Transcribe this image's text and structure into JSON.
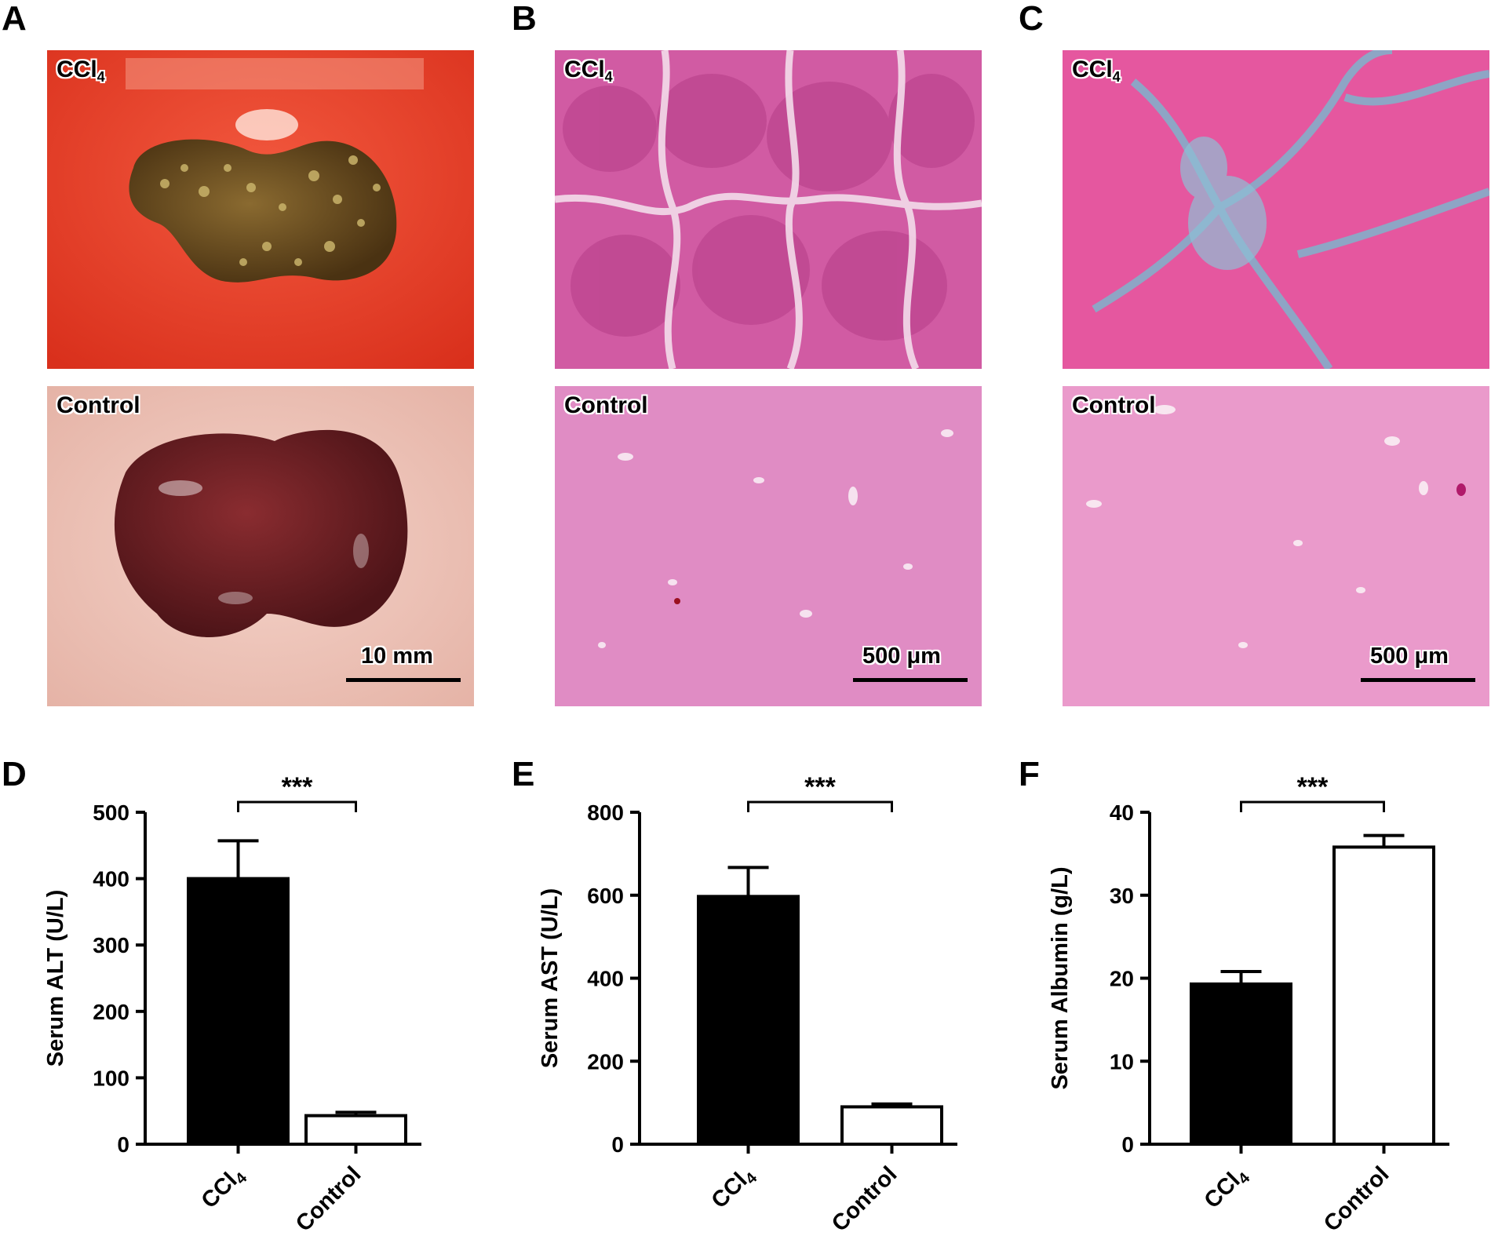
{
  "panels": {
    "A": {
      "letter": "A",
      "top_label": "CCl",
      "top_sub": "4",
      "bottom_label": "Control",
      "scale": "10 mm"
    },
    "B": {
      "letter": "B",
      "top_label": "CCl",
      "top_sub": "4",
      "bottom_label": "Control",
      "scale": "500 μm"
    },
    "C": {
      "letter": "C",
      "top_label": "CCl",
      "top_sub": "4",
      "bottom_label": "Control",
      "scale": "500 μm"
    },
    "D": {
      "letter": "D"
    },
    "E": {
      "letter": "E"
    },
    "F": {
      "letter": "F"
    }
  },
  "colors": {
    "ccl4_bar": "#000000",
    "control_bar": "#ffffff",
    "axis": "#000000"
  },
  "chart_data": [
    {
      "type": "bar",
      "panel": "D",
      "categories": [
        "CCl4",
        "Control"
      ],
      "category_labels": [
        {
          "main": "CCl",
          "sub": "4"
        },
        {
          "main": "Control",
          "sub": ""
        }
      ],
      "values": [
        400,
        43
      ],
      "errors": [
        57,
        5
      ],
      "fills": [
        "#000000",
        "#ffffff"
      ],
      "ylabel": "Serum ALT (U/L)",
      "ylim": [
        0,
        500
      ],
      "yticks": [
        0,
        100,
        200,
        300,
        400,
        500
      ],
      "significance": "***"
    },
    {
      "type": "bar",
      "panel": "E",
      "categories": [
        "CCl4",
        "Control"
      ],
      "category_labels": [
        {
          "main": "CCl",
          "sub": "4"
        },
        {
          "main": "Control",
          "sub": ""
        }
      ],
      "values": [
        597,
        90
      ],
      "errors": [
        70,
        7
      ],
      "fills": [
        "#000000",
        "#ffffff"
      ],
      "ylabel": "Serum AST (U/L)",
      "ylim": [
        0,
        800
      ],
      "yticks": [
        0,
        200,
        400,
        600,
        800
      ],
      "significance": "***"
    },
    {
      "type": "bar",
      "panel": "F",
      "categories": [
        "CCl4",
        "Control"
      ],
      "category_labels": [
        {
          "main": "CCl",
          "sub": "4"
        },
        {
          "main": "Control",
          "sub": ""
        }
      ],
      "values": [
        19.3,
        35.8
      ],
      "errors": [
        1.5,
        1.4
      ],
      "fills": [
        "#000000",
        "#ffffff"
      ],
      "ylabel": "Serum Albumin (g/L)",
      "ylim": [
        0,
        40
      ],
      "yticks": [
        0,
        10,
        20,
        30,
        40
      ],
      "significance": "***"
    }
  ]
}
